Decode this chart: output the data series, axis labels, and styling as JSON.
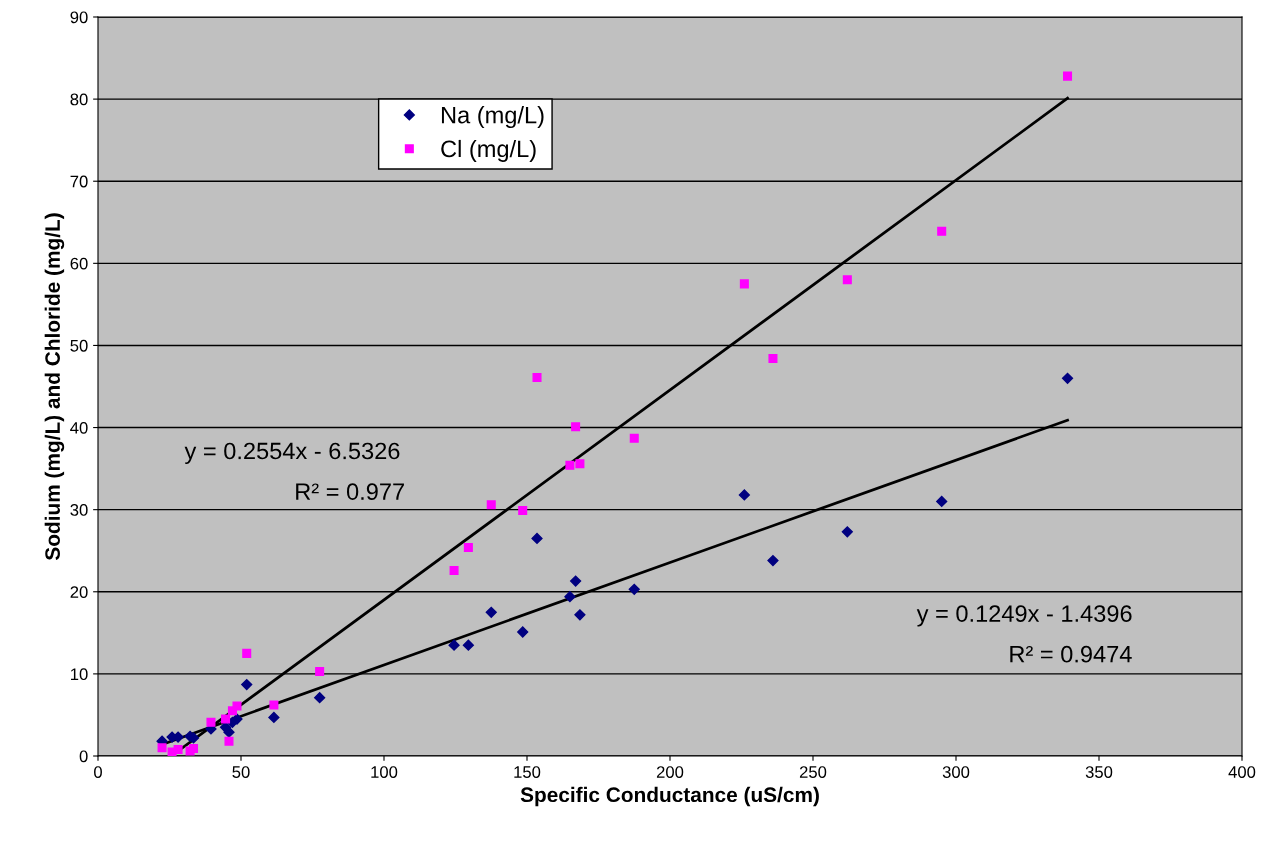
{
  "chart_data": {
    "type": "scatter",
    "xlabel": "Specific Conductance (uS/cm)",
    "ylabel": "Sodium (mg/L) and Chloride (mg/L)",
    "xlim": [
      0,
      400
    ],
    "xticks": [
      0,
      50,
      100,
      150,
      200,
      250,
      300,
      350,
      400
    ],
    "ylim": [
      0,
      90
    ],
    "yticks": [
      0,
      10,
      20,
      30,
      40,
      50,
      60,
      70,
      80,
      90
    ],
    "grid": "y",
    "legend": "top left",
    "annotations": [
      "y = 0.2554x - 6.5326",
      "R² = 0.977",
      "y = 0.1249x - 1.4396",
      "R² = 0.9474"
    ],
    "x": [
      22.4,
      25.9,
      28.0,
      32.2,
      33.4,
      39.5,
      44.6,
      45.8,
      47.0,
      48.6,
      52,
      61.5,
      77.5,
      124.5,
      129.5,
      137.5,
      148.5,
      153.5,
      165,
      167,
      168.5,
      187.5,
      226,
      236,
      262,
      295,
      339
    ],
    "series": [
      {
        "name": "Na (mg/L)",
        "color": "#000080",
        "marker": "diamond",
        "values": [
          1.8,
          2.3,
          2.3,
          2.4,
          2.2,
          3.3,
          3.5,
          2.9,
          4.1,
          4.5,
          8.7,
          4.7,
          7.1,
          13.5,
          13.5,
          17.5,
          15.1,
          26.5,
          19.4,
          21.3,
          17.2,
          20.3,
          31.8,
          23.8,
          27.3,
          31.0,
          46.0
        ]
      },
      {
        "name": "Cl (mg/L)",
        "color": "#ff00ff",
        "marker": "square",
        "values": [
          1.0,
          0.5,
          0.8,
          0.6,
          0.9,
          4.1,
          4.5,
          1.8,
          5.5,
          6.1,
          12.5,
          6.2,
          10.3,
          22.6,
          25.4,
          30.6,
          29.9,
          46.1,
          35.4,
          40.1,
          35.6,
          38.7,
          57.5,
          48.4,
          58.0,
          63.9,
          82.8
        ]
      },
      {
        "type": "line",
        "color": "#000000",
        "x": [
          25.6,
          339
        ],
        "values": [
          0,
          80.1
        ]
      },
      {
        "type": "line",
        "color": "#000000",
        "x": [
          22.4,
          339
        ],
        "values": [
          1.4,
          40.9
        ]
      }
    ]
  }
}
